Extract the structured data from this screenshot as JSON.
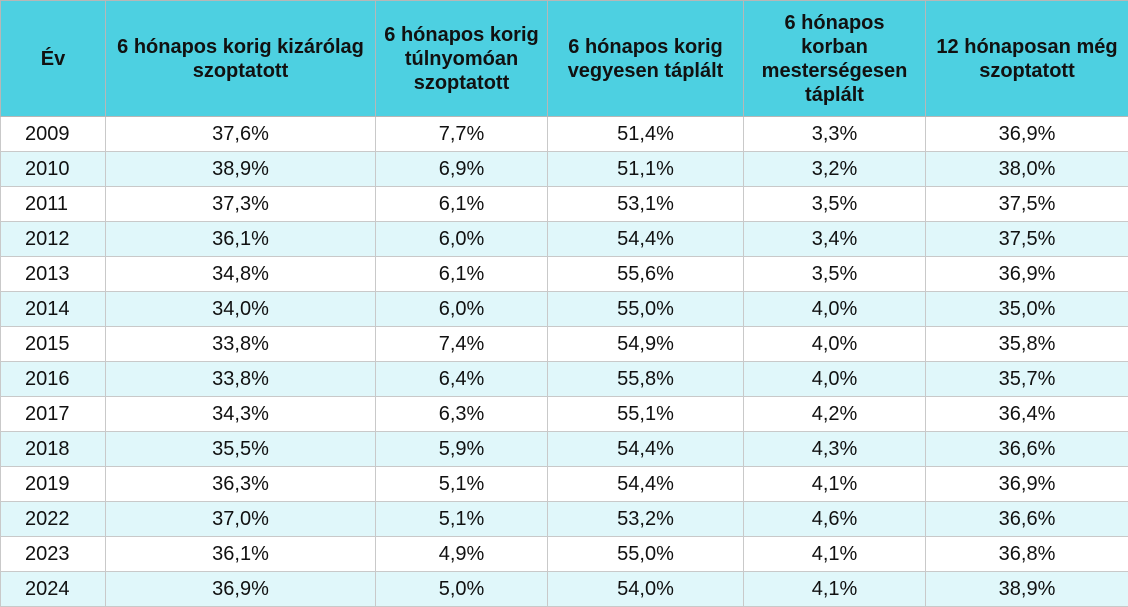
{
  "table": {
    "headers": [
      "Év",
      "6 hónapos korig kizárólag szoptatott",
      "6 hónapos korig túlnyomóan szoptatott",
      "6 hónapos korig vegyesen táplált",
      "6 hónapos korban mesterségesen táplált",
      "12 hónaposan még szoptatott"
    ],
    "rows": [
      [
        "2009",
        "37,6%",
        "7,7%",
        "51,4%",
        "3,3%",
        "36,9%"
      ],
      [
        "2010",
        "38,9%",
        "6,9%",
        "51,1%",
        "3,2%",
        "38,0%"
      ],
      [
        "2011",
        "37,3%",
        "6,1%",
        "53,1%",
        "3,5%",
        "37,5%"
      ],
      [
        "2012",
        "36,1%",
        "6,0%",
        "54,4%",
        "3,4%",
        "37,5%"
      ],
      [
        "2013",
        "34,8%",
        "6,1%",
        "55,6%",
        "3,5%",
        "36,9%"
      ],
      [
        "2014",
        "34,0%",
        "6,0%",
        "55,0%",
        "4,0%",
        "35,0%"
      ],
      [
        "2015",
        "33,8%",
        "7,4%",
        "54,9%",
        "4,0%",
        "35,8%"
      ],
      [
        "2016",
        "33,8%",
        "6,4%",
        "55,8%",
        "4,0%",
        "35,7%"
      ],
      [
        "2017",
        "34,3%",
        "6,3%",
        "55,1%",
        "4,2%",
        "36,4%"
      ],
      [
        "2018",
        "35,5%",
        "5,9%",
        "54,4%",
        "4,3%",
        "36,6%"
      ],
      [
        "2019",
        "36,3%",
        "5,1%",
        "54,4%",
        "4,1%",
        "36,9%"
      ],
      [
        "2022",
        "37,0%",
        "5,1%",
        "53,2%",
        "4,6%",
        "36,6%"
      ],
      [
        "2023",
        "36,1%",
        "4,9%",
        "55,0%",
        "4,1%",
        "36,8%"
      ],
      [
        "2024",
        "36,9%",
        "5,0%",
        "54,0%",
        "4,1%",
        "38,9%"
      ]
    ]
  },
  "colors": {
    "header_bg": "#4dd0e1",
    "row_alt_bg": "#e0f7fa",
    "row_bg": "#ffffff"
  }
}
